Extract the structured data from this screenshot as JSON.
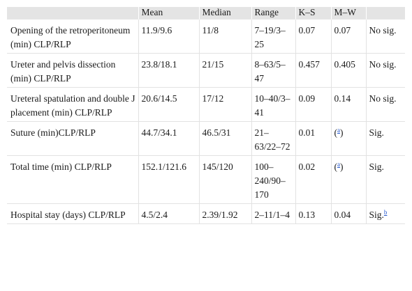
{
  "header": [
    "",
    "Mean",
    "Median",
    "Range",
    "K–S",
    "M–W",
    ""
  ],
  "rows": [
    {
      "label": "Opening of the retroperitoneum (min) CLP/RLP",
      "mean": "11.9/9.6",
      "median": "11/8",
      "range": "7–19/3–25",
      "ks": "0.07",
      "mw": "0.07",
      "sig": "No sig.",
      "sig_note": ""
    },
    {
      "label": "Ureter and pelvis dissection (min) CLP/RLP",
      "mean": "23.8/18.1",
      "median": "21/15",
      "range": "8–63/5–47",
      "ks": "0.457",
      "mw": "0.405",
      "sig": "No sig.",
      "sig_note": ""
    },
    {
      "label": "Ureteral spatulation and double J placement (min) CLP/RLP",
      "mean": "20.6/14.5",
      "median": "17/12",
      "range": "10–40/3–41",
      "ks": "0.09",
      "mw": "0.14",
      "sig": "No sig.",
      "sig_note": ""
    },
    {
      "label": "Suture (min)CLP/RLP",
      "mean": "44.7/34.1",
      "median": "46.5/31",
      "range": "21–63/22–72",
      "ks": "0.01",
      "mw_open": "(",
      "mw_note": "a",
      "mw_close": ")",
      "sig": "Sig.",
      "sig_note": ""
    },
    {
      "label": "Total time (min) CLP/RLP",
      "mean": "152.1/121.6",
      "median": "145/120",
      "range": "100–240/90–170",
      "ks": "0.02",
      "mw_open": "(",
      "mw_note": "a",
      "mw_close": ")",
      "sig": "Sig.",
      "sig_note": ""
    },
    {
      "label": "Hospital stay (days) CLP/RLP",
      "mean": "4.5/2.4",
      "median": "2.39/1.92",
      "range": "2–11/1–4",
      "ks": "0.13",
      "mw": "0.04",
      "sig": "Sig.",
      "sig_note": "b"
    }
  ]
}
